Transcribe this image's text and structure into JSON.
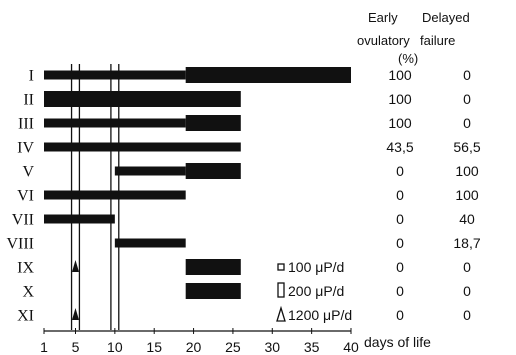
{
  "chart_data": {
    "type": "bar",
    "xlabel": "days of life",
    "xlim": [
      1,
      40
    ],
    "x_ticks": [
      "1",
      "5",
      "10",
      "15",
      "20",
      "25",
      "30",
      "35",
      "40"
    ],
    "x_tick_values": [
      1,
      5,
      10,
      15,
      20,
      25,
      30,
      35,
      40
    ],
    "reference_lines": [
      4.5,
      5.5,
      9.5,
      10.5
    ],
    "columns": {
      "early": {
        "line1": "Early",
        "line2": "ovulatory"
      },
      "delayed": {
        "line1": "Delayed",
        "line2": "failure"
      },
      "unit": "(%)"
    },
    "groups": [
      {
        "label": "I",
        "segments": [
          {
            "start": 1,
            "end": 19,
            "style": "thin"
          },
          {
            "start": 19,
            "end": 40,
            "style": "thick"
          }
        ],
        "pulses": [],
        "early": "100",
        "delayed": "0"
      },
      {
        "label": "II",
        "segments": [
          {
            "start": 1,
            "end": 26,
            "style": "thick"
          }
        ],
        "pulses": [],
        "early": "100",
        "delayed": "0"
      },
      {
        "label": "III",
        "segments": [
          {
            "start": 1,
            "end": 19,
            "style": "thin"
          },
          {
            "start": 19,
            "end": 26,
            "style": "thick"
          }
        ],
        "pulses": [],
        "early": "100",
        "delayed": "0"
      },
      {
        "label": "IV",
        "segments": [
          {
            "start": 1,
            "end": 26,
            "style": "thin"
          }
        ],
        "pulses": [],
        "early": "43,5",
        "delayed": "56,5"
      },
      {
        "label": "V",
        "segments": [
          {
            "start": 10,
            "end": 19,
            "style": "thin"
          },
          {
            "start": 19,
            "end": 26,
            "style": "thick"
          }
        ],
        "pulses": [],
        "early": "0",
        "delayed": "100"
      },
      {
        "label": "VI",
        "segments": [
          {
            "start": 1,
            "end": 19,
            "style": "thin"
          }
        ],
        "pulses": [],
        "early": "0",
        "delayed": "100"
      },
      {
        "label": "VII",
        "segments": [
          {
            "start": 1,
            "end": 10,
            "style": "thin"
          }
        ],
        "pulses": [],
        "early": "0",
        "delayed": "40"
      },
      {
        "label": "VIII",
        "segments": [
          {
            "start": 10,
            "end": 19,
            "style": "thin"
          }
        ],
        "pulses": [],
        "early": "0",
        "delayed": "18,7"
      },
      {
        "label": "IX",
        "segments": [
          {
            "start": 19,
            "end": 26,
            "style": "thick"
          }
        ],
        "pulses": [
          {
            "day": 5,
            "style": "triangle"
          }
        ],
        "early": "0",
        "delayed": "0"
      },
      {
        "label": "X",
        "segments": [
          {
            "start": 19,
            "end": 26,
            "style": "thick"
          }
        ],
        "pulses": [],
        "early": "0",
        "delayed": "0"
      },
      {
        "label": "XI",
        "segments": [],
        "pulses": [
          {
            "day": 5,
            "style": "triangle"
          }
        ],
        "early": "0",
        "delayed": "0"
      }
    ],
    "legend": [
      {
        "symbol": "small-square",
        "text": "100 μP/d"
      },
      {
        "symbol": "tall-rect",
        "text": "200 μP/d"
      },
      {
        "symbol": "triangle",
        "text": "1200 μP/d"
      }
    ]
  }
}
